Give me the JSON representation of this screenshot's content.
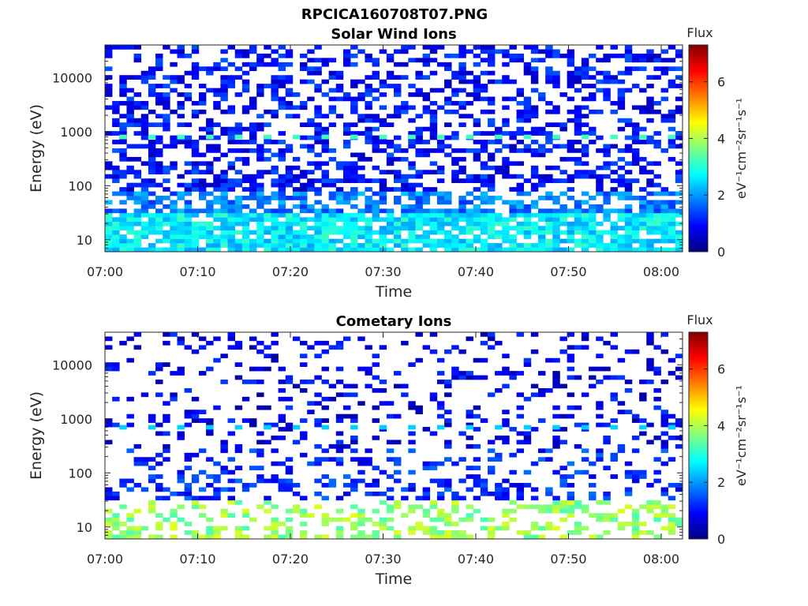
{
  "figure": {
    "title": "RPCICA160708T07.PNG"
  },
  "colors": {
    "jet_stops": [
      "#00007f",
      "#0000ff",
      "#007fff",
      "#00ffff",
      "#7fff7f",
      "#ffff00",
      "#ff7f00",
      "#ff0000",
      "#7f0000"
    ]
  },
  "chart_data": [
    {
      "type": "heatmap",
      "title": "Solar Wind Ions",
      "xlabel": "Time",
      "ylabel": "Energy (eV)",
      "x_tick_labels": [
        "07:00",
        "07:10",
        "07:20",
        "07:30",
        "07:40",
        "07:50",
        "08:00"
      ],
      "x_tick_minutes": [
        0,
        10,
        20,
        30,
        40,
        50,
        60
      ],
      "xlim_minutes": [
        0,
        62.3
      ],
      "y_scale": "log",
      "ylim": [
        6,
        40000
      ],
      "y_tick_labels": [
        "10",
        "100",
        "1000",
        "10000"
      ],
      "y_tick_values": [
        10,
        100,
        1000,
        10000
      ],
      "colorbar": {
        "title": "Flux",
        "label": "eV⁻¹cm⁻²sr⁻¹s⁻¹",
        "range": [
          0,
          7.3
        ],
        "tick_labels": [
          "0",
          "2",
          "4",
          "6"
        ],
        "tick_values": [
          0,
          2,
          4,
          6
        ]
      },
      "z_levels_by_energy": [
        {
          "energy_range": [
            6,
            30
          ],
          "flux": 2.6
        },
        {
          "energy_range": [
            30,
            80
          ],
          "flux": 1.8
        },
        {
          "energy_range": [
            80,
            40000
          ],
          "flux": 1.0
        }
      ],
      "recurring_feature": {
        "energy": 800,
        "flux": 3.2
      }
    },
    {
      "type": "heatmap",
      "title": "Cometary Ions",
      "xlabel": "Time",
      "ylabel": "Energy (eV)",
      "x_tick_labels": [
        "07:00",
        "07:10",
        "07:20",
        "07:30",
        "07:40",
        "07:50",
        "08:00"
      ],
      "x_tick_minutes": [
        0,
        10,
        20,
        30,
        40,
        50,
        60
      ],
      "xlim_minutes": [
        0,
        62.3
      ],
      "y_scale": "log",
      "ylim": [
        6,
        40000
      ],
      "y_tick_labels": [
        "10",
        "100",
        "1000",
        "10000"
      ],
      "y_tick_values": [
        10,
        100,
        1000,
        10000
      ],
      "colorbar": {
        "title": "Flux",
        "label": "eV⁻¹cm⁻²sr⁻¹s⁻¹",
        "range": [
          0,
          7.3
        ],
        "tick_labels": [
          "0",
          "2",
          "4",
          "6"
        ],
        "tick_values": [
          0,
          2,
          4,
          6
        ]
      },
      "z_levels_by_energy": [
        {
          "energy_range": [
            6,
            30
          ],
          "flux": 3.8
        },
        {
          "energy_range": [
            30,
            300
          ],
          "flux": 1.2
        },
        {
          "energy_range": [
            300,
            40000
          ],
          "flux": 0.8
        }
      ],
      "recurring_feature": {
        "energy": 700,
        "flux": 2.4
      }
    }
  ]
}
